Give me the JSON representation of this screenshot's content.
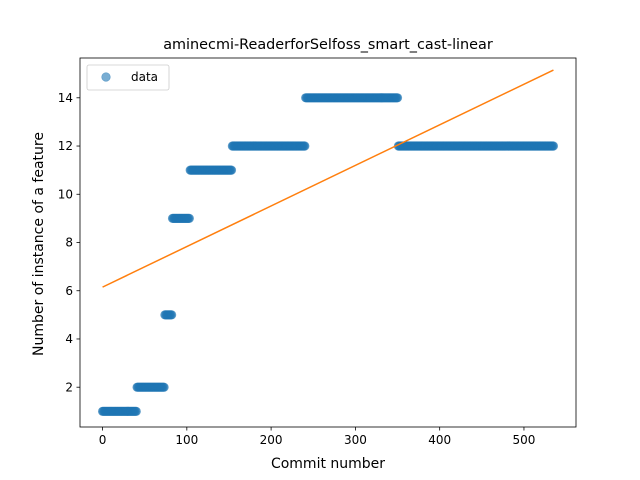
{
  "chart_data": {
    "type": "scatter",
    "title": "aminecmi-ReaderforSelfoss_smart_cast-linear",
    "xlabel": "Commit number",
    "ylabel": "Number of instance of a feature",
    "xlim": [
      -26.75,
      561.75
    ],
    "ylim": [
      0.35,
      15.65
    ],
    "xticks": [
      0,
      100,
      200,
      300,
      400,
      500
    ],
    "yticks": [
      2,
      4,
      6,
      8,
      10,
      12,
      14
    ],
    "grid": false,
    "legend": {
      "position": "top-left",
      "entries": [
        "data"
      ]
    },
    "colors": {
      "data": "#1f77b4",
      "fit": "#ff7f0e"
    },
    "series": [
      {
        "name": "data",
        "kind": "scatter",
        "segments": [
          {
            "x_start": 0,
            "x_end": 40,
            "y": 1
          },
          {
            "x_start": 41,
            "x_end": 73,
            "y": 2
          },
          {
            "x_start": 74,
            "x_end": 82,
            "y": 5
          },
          {
            "x_start": 83,
            "x_end": 103,
            "y": 9
          },
          {
            "x_start": 104,
            "x_end": 153,
            "y": 11
          },
          {
            "x_start": 154,
            "x_end": 240,
            "y": 12
          },
          {
            "x_start": 241,
            "x_end": 350,
            "y": 14
          },
          {
            "x_start": 351,
            "x_end": 535,
            "y": 12
          }
        ]
      },
      {
        "kind": "line",
        "points": [
          [
            0,
            6.15
          ],
          [
            535,
            15.15
          ]
        ]
      }
    ]
  }
}
